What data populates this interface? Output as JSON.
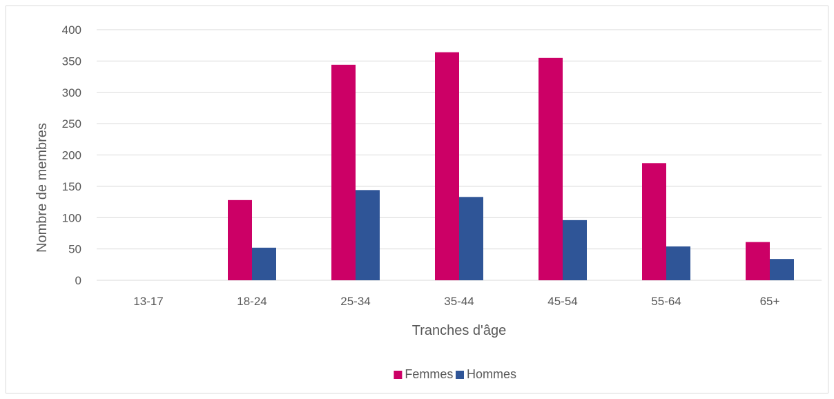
{
  "chart_data": {
    "type": "bar",
    "title": "",
    "xlabel": "Tranches d'âge",
    "ylabel": "Nombre de membres",
    "categories": [
      "13-17",
      "18-24",
      "25-34",
      "35-44",
      "45-54",
      "55-64",
      "65+"
    ],
    "series": [
      {
        "name": "Femmes",
        "color": "#cc0066",
        "values": [
          0,
          128,
          344,
          364,
          355,
          187,
          61
        ]
      },
      {
        "name": "Hommes",
        "color": "#2f5597",
        "values": [
          0,
          52,
          144,
          133,
          96,
          54,
          34
        ]
      }
    ],
    "ylim": [
      0,
      400
    ],
    "yticks": [
      "0",
      "50",
      "100",
      "150",
      "200",
      "250",
      "300",
      "350",
      "400"
    ],
    "grid": true,
    "legend_position": "bottom"
  }
}
